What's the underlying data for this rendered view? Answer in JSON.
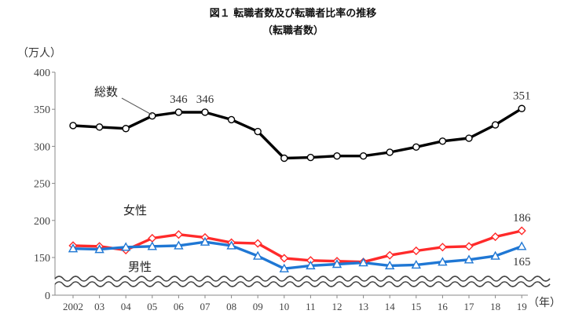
{
  "chart_data": {
    "type": "line",
    "title": "図１ 転職者数及び転職者比率の推移",
    "subtitle": "（転職者数）",
    "ylabel": "（万人）",
    "xlabel": "（年）",
    "ylim": [
      0,
      400
    ],
    "yticks": [
      0,
      150,
      200,
      250,
      300,
      350,
      400
    ],
    "axis_break": [
      0,
      130
    ],
    "grid": false,
    "categories": [
      "2002",
      "03",
      "04",
      "05",
      "06",
      "07",
      "08",
      "09",
      "10",
      "11",
      "12",
      "13",
      "14",
      "15",
      "16",
      "17",
      "18",
      "19"
    ],
    "series": [
      {
        "name": "総数",
        "color": "#000000",
        "marker": "circle",
        "values": [
          328,
          326,
          324,
          341,
          346,
          346,
          336,
          320,
          284,
          285,
          287,
          287,
          292,
          299,
          307,
          311,
          329,
          351
        ]
      },
      {
        "name": "女性",
        "color": "#ff2a2a",
        "marker": "diamond",
        "values": [
          166,
          165,
          160,
          176,
          181,
          177,
          170,
          169,
          149,
          146,
          145,
          144,
          153,
          159,
          164,
          165,
          178,
          186
        ]
      },
      {
        "name": "男性",
        "color": "#1f77d4",
        "marker": "triangle",
        "values": [
          162,
          161,
          164,
          165,
          166,
          171,
          166,
          152,
          135,
          139,
          141,
          143,
          139,
          140,
          144,
          147,
          152,
          165
        ]
      }
    ],
    "data_labels": [
      {
        "series": 0,
        "index": 4,
        "text": "346"
      },
      {
        "series": 0,
        "index": 5,
        "text": "346"
      },
      {
        "series": 0,
        "index": 17,
        "text": "351"
      },
      {
        "series": 1,
        "index": 17,
        "text": "186"
      },
      {
        "series": 2,
        "index": 17,
        "text": "165"
      }
    ]
  }
}
